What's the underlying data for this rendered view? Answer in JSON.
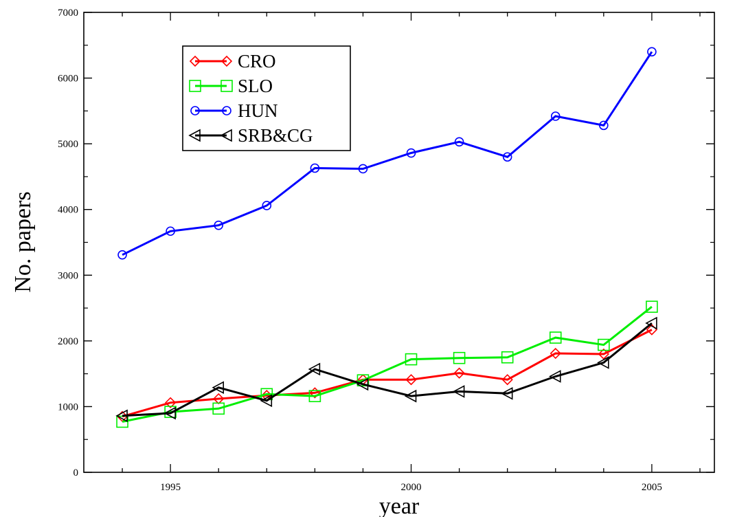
{
  "chart_data": {
    "type": "line",
    "title": "",
    "xlabel": "year",
    "ylabel": "No. papers",
    "xlim": [
      1993.2,
      2006.3
    ],
    "ylim": [
      0,
      7000
    ],
    "xticks": [
      1995,
      2000,
      2005
    ],
    "yticks": [
      0,
      1000,
      2000,
      3000,
      4000,
      5000,
      6000,
      7000
    ],
    "grid": false,
    "legend_position": "top-left",
    "x": [
      1994,
      1995,
      1996,
      1997,
      1998,
      1999,
      2000,
      2001,
      2002,
      2003,
      2004,
      2005
    ],
    "series": [
      {
        "name": "CRO",
        "color": "#ff0000",
        "marker": "diamond",
        "values": [
          850,
          1060,
          1120,
          1170,
          1210,
          1410,
          1410,
          1510,
          1410,
          1810,
          1800,
          2170
        ]
      },
      {
        "name": "SLO",
        "color": "#00ee00",
        "marker": "square",
        "values": [
          770,
          920,
          970,
          1190,
          1160,
          1400,
          1720,
          1740,
          1750,
          2050,
          1940,
          2520
        ]
      },
      {
        "name": "HUN",
        "color": "#0000ff",
        "marker": "circle",
        "values": [
          3310,
          3670,
          3760,
          4060,
          4630,
          4620,
          4860,
          5030,
          4800,
          5420,
          5280,
          6400
        ]
      },
      {
        "name": "SRB&CG",
        "color": "#000000",
        "marker": "triangle-left",
        "values": [
          860,
          900,
          1290,
          1090,
          1570,
          1340,
          1160,
          1230,
          1200,
          1460,
          1670,
          2270
        ]
      }
    ]
  }
}
